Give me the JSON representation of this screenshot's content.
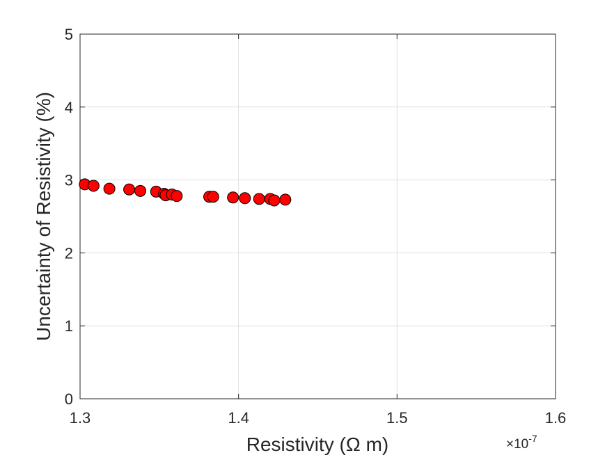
{
  "chart_data": {
    "type": "scatter",
    "title": "",
    "xlabel": "Resistivity  (Ω  m)",
    "ylabel": "Uncertainty of Resistivity (%)",
    "x_exponent_label": "×10",
    "x_exponent_power": "-7",
    "xlim": [
      1.3e-07,
      1.6e-07
    ],
    "ylim": [
      0,
      5
    ],
    "x_ticks": [
      1.3e-07,
      1.4e-07,
      1.5e-07,
      1.6e-07
    ],
    "x_tick_labels": [
      "1.3",
      "1.4",
      "1.5",
      "1.6"
    ],
    "y_ticks": [
      0,
      1,
      2,
      3,
      4,
      5
    ],
    "y_tick_labels": [
      "0",
      "1",
      "2",
      "3",
      "4",
      "5"
    ],
    "grid": true,
    "marker_color": "#ff0000",
    "marker_edge_color": "#000000",
    "points": [
      {
        "x": 1.303e-07,
        "y": 2.94
      },
      {
        "x": 1.3085e-07,
        "y": 2.92
      },
      {
        "x": 1.3185e-07,
        "y": 2.88
      },
      {
        "x": 1.331e-07,
        "y": 2.87
      },
      {
        "x": 1.338e-07,
        "y": 2.85
      },
      {
        "x": 1.348e-07,
        "y": 2.84
      },
      {
        "x": 1.353e-07,
        "y": 2.81
      },
      {
        "x": 1.354e-07,
        "y": 2.79
      },
      {
        "x": 1.358e-07,
        "y": 2.8
      },
      {
        "x": 1.361e-07,
        "y": 2.78
      },
      {
        "x": 1.3815e-07,
        "y": 2.77
      },
      {
        "x": 1.384e-07,
        "y": 2.77
      },
      {
        "x": 1.3965e-07,
        "y": 2.76
      },
      {
        "x": 1.404e-07,
        "y": 2.75
      },
      {
        "x": 1.413e-07,
        "y": 2.74
      },
      {
        "x": 1.42e-07,
        "y": 2.74
      },
      {
        "x": 1.4225e-07,
        "y": 2.72
      },
      {
        "x": 1.4295e-07,
        "y": 2.73
      }
    ]
  }
}
